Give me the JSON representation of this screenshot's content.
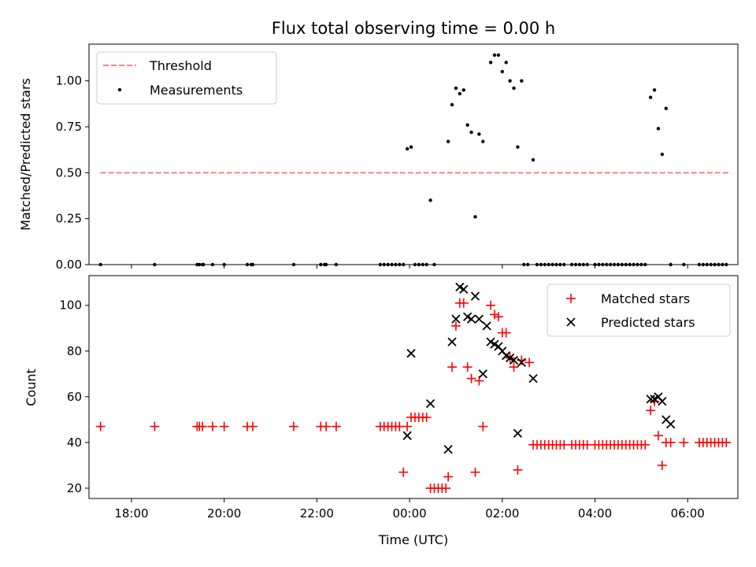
{
  "title": "Flux total observing time = 0.00 h",
  "colors": {
    "threshold": "#ff7f7f",
    "measurement": "#000000",
    "matched": "#ff0000",
    "predicted": "#000000"
  },
  "chart_data": [
    {
      "type": "scatter",
      "title": "Flux total observing time = 0.00 h",
      "xlabel": "",
      "ylabel": "Matched/Predicted stars",
      "xlim": [
        "17:05",
        "31:05"
      ],
      "ylim": [
        0,
        1.2
      ],
      "xticks": [
        "18:00",
        "20:00",
        "22:00",
        "00:00",
        "02:00",
        "04:00",
        "06:00"
      ],
      "ytick_labels": [
        "0.00",
        "0.25",
        "0.50",
        "0.75",
        "1.00"
      ],
      "legend": {
        "position": "top-left",
        "entries": [
          "Threshold",
          "Measurements"
        ]
      },
      "threshold": {
        "name": "Threshold",
        "value": 0.5,
        "x": [
          "17:20",
          "30:55"
        ]
      },
      "series": [
        {
          "name": "Measurements",
          "points": [
            [
              "17:20",
              0
            ],
            [
              "18:30",
              0
            ],
            [
              "19:25",
              0
            ],
            [
              "19:28",
              0
            ],
            [
              "19:32",
              0
            ],
            [
              "19:33",
              0
            ],
            [
              "19:45",
              0
            ],
            [
              "20:00",
              0
            ],
            [
              "20:30",
              0
            ],
            [
              "20:35",
              0
            ],
            [
              "20:37",
              0
            ],
            [
              "21:30",
              0
            ],
            [
              "22:05",
              0
            ],
            [
              "22:10",
              0
            ],
            [
              "22:12",
              0
            ],
            [
              "22:25",
              0
            ],
            [
              "23:22",
              0
            ],
            [
              "23:27",
              0
            ],
            [
              "23:32",
              0
            ],
            [
              "23:37",
              0
            ],
            [
              "23:42",
              0
            ],
            [
              "23:47",
              0
            ],
            [
              "23:52",
              0
            ],
            [
              "23:57",
              0.63
            ],
            [
              "24:02",
              0.64
            ],
            [
              "24:07",
              0
            ],
            [
              "24:12",
              0
            ],
            [
              "24:17",
              0
            ],
            [
              "24:22",
              0
            ],
            [
              "24:27",
              0.35
            ],
            [
              "24:32",
              0
            ],
            [
              "24:50",
              0.67
            ],
            [
              "24:55",
              0.87
            ],
            [
              "25:00",
              0.96
            ],
            [
              "25:05",
              0.93
            ],
            [
              "25:10",
              0.95
            ],
            [
              "25:15",
              0.76
            ],
            [
              "25:20",
              0.72
            ],
            [
              "25:25",
              0.26
            ],
            [
              "25:30",
              0.71
            ],
            [
              "25:35",
              0.67
            ],
            [
              "25:45",
              1.1
            ],
            [
              "25:50",
              1.14
            ],
            [
              "25:55",
              1.14
            ],
            [
              "26:00",
              1.05
            ],
            [
              "26:05",
              1.1
            ],
            [
              "26:10",
              1.0
            ],
            [
              "26:15",
              0.96
            ],
            [
              "26:20",
              0.64
            ],
            [
              "26:25",
              1.0
            ],
            [
              "26:40",
              0.57
            ],
            [
              "26:28",
              0
            ],
            [
              "26:33",
              0
            ],
            [
              "26:45",
              0
            ],
            [
              "26:50",
              0
            ],
            [
              "26:55",
              0
            ],
            [
              "27:00",
              0
            ],
            [
              "27:05",
              0
            ],
            [
              "27:10",
              0
            ],
            [
              "27:15",
              0
            ],
            [
              "27:20",
              0
            ],
            [
              "27:30",
              0
            ],
            [
              "27:35",
              0
            ],
            [
              "27:40",
              0
            ],
            [
              "27:45",
              0
            ],
            [
              "27:50",
              0
            ],
            [
              "28:00",
              0
            ],
            [
              "28:05",
              0
            ],
            [
              "28:10",
              0
            ],
            [
              "28:15",
              0
            ],
            [
              "28:20",
              0
            ],
            [
              "28:25",
              0
            ],
            [
              "28:30",
              0
            ],
            [
              "28:35",
              0
            ],
            [
              "28:40",
              0
            ],
            [
              "28:45",
              0
            ],
            [
              "28:50",
              0
            ],
            [
              "28:55",
              0
            ],
            [
              "29:00",
              0
            ],
            [
              "29:05",
              0
            ],
            [
              "29:12",
              0.91
            ],
            [
              "29:17",
              0.95
            ],
            [
              "29:22",
              0.74
            ],
            [
              "29:27",
              0.6
            ],
            [
              "29:32",
              0.85
            ],
            [
              "29:38",
              0
            ],
            [
              "29:55",
              0
            ],
            [
              "30:15",
              0
            ],
            [
              "30:20",
              0
            ],
            [
              "30:25",
              0
            ],
            [
              "30:30",
              0
            ],
            [
              "30:35",
              0
            ],
            [
              "30:40",
              0
            ],
            [
              "30:45",
              0
            ],
            [
              "30:50",
              0
            ]
          ]
        }
      ]
    },
    {
      "type": "scatter",
      "title": "",
      "xlabel": "Time (UTC)",
      "ylabel": "Count",
      "xlim": [
        "17:05",
        "31:05"
      ],
      "ylim": [
        15.5,
        113
      ],
      "xticks": [
        "18:00",
        "20:00",
        "22:00",
        "00:00",
        "02:00",
        "04:00",
        "06:00"
      ],
      "yticks": [
        20,
        40,
        60,
        80,
        100
      ],
      "legend": {
        "position": "top-right",
        "entries": [
          "Matched stars",
          "Predicted stars"
        ]
      },
      "series": [
        {
          "name": "Matched stars",
          "marker": "+",
          "points": [
            [
              "17:20",
              47
            ],
            [
              "18:30",
              47
            ],
            [
              "19:25",
              47
            ],
            [
              "19:28",
              47
            ],
            [
              "19:32",
              47
            ],
            [
              "19:45",
              47
            ],
            [
              "20:00",
              47
            ],
            [
              "20:30",
              47
            ],
            [
              "20:37",
              47
            ],
            [
              "21:30",
              47
            ],
            [
              "22:05",
              47
            ],
            [
              "22:12",
              47
            ],
            [
              "22:25",
              47
            ],
            [
              "23:22",
              47
            ],
            [
              "23:27",
              47
            ],
            [
              "23:32",
              47
            ],
            [
              "23:37",
              47
            ],
            [
              "23:42",
              47
            ],
            [
              "23:47",
              47
            ],
            [
              "23:52",
              27
            ],
            [
              "23:57",
              47
            ],
            [
              "24:02",
              51
            ],
            [
              "24:07",
              51
            ],
            [
              "24:12",
              51
            ],
            [
              "24:17",
              51
            ],
            [
              "24:22",
              51
            ],
            [
              "24:27",
              20
            ],
            [
              "24:32",
              20
            ],
            [
              "24:37",
              20
            ],
            [
              "24:42",
              20
            ],
            [
              "24:47",
              20
            ],
            [
              "24:50",
              25
            ],
            [
              "24:55",
              73
            ],
            [
              "25:00",
              91
            ],
            [
              "25:05",
              101
            ],
            [
              "25:10",
              101
            ],
            [
              "25:15",
              73
            ],
            [
              "25:20",
              68
            ],
            [
              "25:25",
              27
            ],
            [
              "25:30",
              67
            ],
            [
              "25:35",
              47
            ],
            [
              "25:45",
              100
            ],
            [
              "25:50",
              96
            ],
            [
              "25:55",
              95
            ],
            [
              "26:00",
              88
            ],
            [
              "26:05",
              88
            ],
            [
              "26:10",
              77
            ],
            [
              "26:15",
              73
            ],
            [
              "26:20",
              28
            ],
            [
              "26:25",
              76
            ],
            [
              "26:35",
              75
            ],
            [
              "26:40",
              39
            ],
            [
              "26:45",
              39
            ],
            [
              "26:50",
              39
            ],
            [
              "26:55",
              39
            ],
            [
              "27:00",
              39
            ],
            [
              "27:05",
              39
            ],
            [
              "27:10",
              39
            ],
            [
              "27:15",
              39
            ],
            [
              "27:20",
              39
            ],
            [
              "27:30",
              39
            ],
            [
              "27:35",
              39
            ],
            [
              "27:40",
              39
            ],
            [
              "27:45",
              39
            ],
            [
              "27:50",
              39
            ],
            [
              "28:00",
              39
            ],
            [
              "28:05",
              39
            ],
            [
              "28:10",
              39
            ],
            [
              "28:15",
              39
            ],
            [
              "28:20",
              39
            ],
            [
              "28:25",
              39
            ],
            [
              "28:30",
              39
            ],
            [
              "28:35",
              39
            ],
            [
              "28:40",
              39
            ],
            [
              "28:45",
              39
            ],
            [
              "28:50",
              39
            ],
            [
              "28:55",
              39
            ],
            [
              "29:00",
              39
            ],
            [
              "29:05",
              39
            ],
            [
              "29:12",
              54
            ],
            [
              "29:17",
              58
            ],
            [
              "29:22",
              43
            ],
            [
              "29:27",
              30
            ],
            [
              "29:32",
              40
            ],
            [
              "29:38",
              40
            ],
            [
              "29:55",
              40
            ],
            [
              "30:15",
              40
            ],
            [
              "30:20",
              40
            ],
            [
              "30:25",
              40
            ],
            [
              "30:30",
              40
            ],
            [
              "30:35",
              40
            ],
            [
              "30:40",
              40
            ],
            [
              "30:45",
              40
            ],
            [
              "30:50",
              40
            ]
          ]
        },
        {
          "name": "Predicted stars",
          "marker": "x",
          "points": [
            [
              "23:57",
              43
            ],
            [
              "24:02",
              79
            ],
            [
              "24:27",
              57
            ],
            [
              "24:50",
              37
            ],
            [
              "24:55",
              84
            ],
            [
              "25:00",
              94
            ],
            [
              "25:05",
              108
            ],
            [
              "25:10",
              107
            ],
            [
              "25:15",
              95
            ],
            [
              "25:20",
              94
            ],
            [
              "25:25",
              104
            ],
            [
              "25:30",
              94
            ],
            [
              "25:35",
              70
            ],
            [
              "25:40",
              91
            ],
            [
              "25:45",
              84
            ],
            [
              "25:50",
              83
            ],
            [
              "25:55",
              82
            ],
            [
              "26:00",
              80
            ],
            [
              "26:05",
              78
            ],
            [
              "26:10",
              77
            ],
            [
              "26:15",
              76
            ],
            [
              "26:20",
              44
            ],
            [
              "26:25",
              75
            ],
            [
              "26:40",
              68
            ],
            [
              "29:12",
              59
            ],
            [
              "29:17",
              59
            ],
            [
              "29:22",
              60
            ],
            [
              "29:27",
              58
            ],
            [
              "29:32",
              50
            ],
            [
              "29:38",
              48
            ]
          ]
        }
      ]
    }
  ]
}
